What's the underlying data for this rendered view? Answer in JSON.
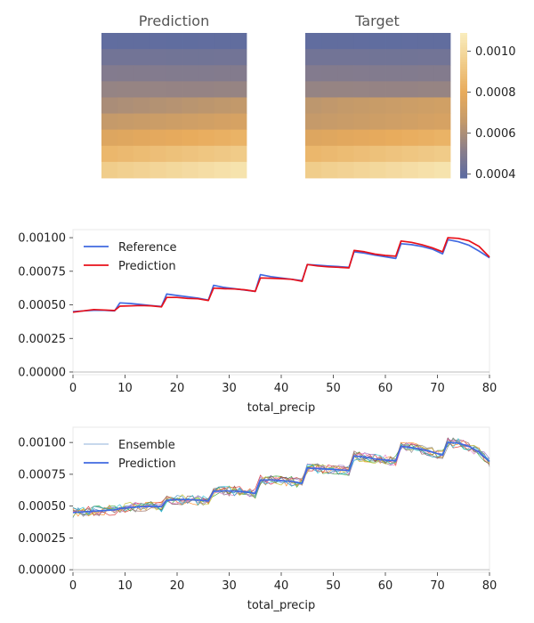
{
  "chart_data": [
    {
      "type": "heatmap",
      "title": "Prediction",
      "rows": 9,
      "cols": 9,
      "row_values": [
        0.0004,
        0.00045,
        0.0005,
        0.00055,
        0.00063,
        0.0007,
        0.0008,
        0.0009,
        0.001
      ],
      "gradient": "left-to-right slight increase on lower rows"
    },
    {
      "type": "heatmap",
      "title": "Target",
      "rows": 9,
      "cols": 9,
      "row_values": [
        0.0004,
        0.00045,
        0.0005,
        0.00055,
        0.00068,
        0.0007,
        0.0008,
        0.0009,
        0.001
      ]
    },
    {
      "type": "colorbar",
      "ticks": [
        "0.0010",
        "0.0008",
        "0.0006",
        "0.0004"
      ],
      "tick_values": [
        0.001,
        0.0008,
        0.0006,
        0.0004
      ],
      "range": [
        0.00038,
        0.00109
      ],
      "colors": [
        "#5a6aa2",
        "#8a7e8a",
        "#c49a6a",
        "#e8ab5c",
        "#f0cc8a",
        "#f9ecbc"
      ]
    },
    {
      "type": "line",
      "xlabel": "total_precip",
      "ylabel": "",
      "xlim": [
        0,
        80
      ],
      "ylim": [
        -2e-05,
        0.00106
      ],
      "xticks": [
        "0",
        "10",
        "20",
        "30",
        "40",
        "50",
        "60",
        "70",
        "80"
      ],
      "yticks": [
        "0.00000",
        "0.00025",
        "0.00050",
        "0.00075",
        "0.00100"
      ],
      "legend": "upper-left",
      "series": [
        {
          "name": "Reference",
          "color": "#4169e1",
          "x": [
            0,
            2,
            4,
            6,
            8,
            9,
            11,
            13,
            15,
            17,
            18,
            20,
            22,
            24,
            26,
            27,
            29,
            31,
            33,
            35,
            36,
            38,
            40,
            42,
            44,
            45,
            47,
            49,
            51,
            53,
            54,
            56,
            58,
            60,
            62,
            63,
            65,
            67,
            69,
            71,
            72,
            74,
            76,
            78,
            80
          ],
          "y": [
            0.00045,
            0.000455,
            0.00046,
            0.00046,
            0.000455,
            0.000515,
            0.00051,
            0.000503,
            0.000495,
            0.000488,
            0.00058,
            0.00057,
            0.00056,
            0.00055,
            0.000535,
            0.000645,
            0.00063,
            0.00062,
            0.00061,
            0.0006,
            0.000725,
            0.00071,
            0.0007,
            0.00069,
            0.00068,
            0.0008,
            0.000795,
            0.00079,
            0.000785,
            0.00078,
            0.000895,
            0.000885,
            0.00087,
            0.000858,
            0.000845,
            0.000955,
            0.000948,
            0.000935,
            0.000915,
            0.00088,
            0.000985,
            0.00097,
            0.000945,
            0.0009,
            0.00085
          ]
        },
        {
          "name": "Prediction",
          "color": "#e8111a",
          "x": [
            0,
            2,
            4,
            6,
            8,
            9,
            11,
            13,
            15,
            17,
            18,
            20,
            22,
            24,
            26,
            27,
            29,
            31,
            33,
            35,
            36,
            38,
            40,
            42,
            44,
            45,
            47,
            49,
            51,
            53,
            54,
            56,
            58,
            60,
            62,
            63,
            65,
            67,
            69,
            71,
            72,
            74,
            76,
            78,
            80
          ],
          "y": [
            0.000445,
            0.000455,
            0.000465,
            0.000462,
            0.000458,
            0.00049,
            0.000492,
            0.000495,
            0.000493,
            0.000485,
            0.000555,
            0.000555,
            0.000548,
            0.000545,
            0.000532,
            0.000625,
            0.00062,
            0.000618,
            0.000612,
            0.0006,
            0.0007,
            0.000698,
            0.000695,
            0.00069,
            0.000675,
            0.0008,
            0.00079,
            0.000783,
            0.00078,
            0.000775,
            0.000905,
            0.000895,
            0.000878,
            0.000868,
            0.000862,
            0.000975,
            0.000965,
            0.000948,
            0.000925,
            0.000895,
            0.001,
            0.000995,
            0.000978,
            0.000935,
            0.000855
          ]
        }
      ]
    },
    {
      "type": "line",
      "xlabel": "total_precip",
      "ylabel": "",
      "xlim": [
        0,
        80
      ],
      "ylim": [
        -2e-05,
        0.00112
      ],
      "xticks": [
        "0",
        "10",
        "20",
        "30",
        "40",
        "50",
        "60",
        "70",
        "80"
      ],
      "yticks": [
        "0.00000",
        "0.00025",
        "0.00050",
        "0.00075",
        "0.00100"
      ],
      "legend": "upper-left",
      "ensemble_members": 10,
      "ensemble_spread": 4e-05,
      "ensemble_colors": [
        "#1f77b4",
        "#ff7f0e",
        "#2ca02c",
        "#d62728",
        "#9467bd",
        "#8c564b",
        "#e377c2",
        "#7f7f7f",
        "#bcbd22",
        "#17becf"
      ],
      "series": [
        {
          "name": "Ensemble",
          "color": "#8fb0d8"
        },
        {
          "name": "Prediction",
          "color": "#4169e1",
          "x": [
            0,
            2,
            4,
            6,
            8,
            9,
            11,
            13,
            15,
            17,
            18,
            20,
            22,
            24,
            26,
            27,
            29,
            31,
            33,
            35,
            36,
            38,
            40,
            42,
            44,
            45,
            47,
            49,
            51,
            53,
            54,
            56,
            58,
            60,
            62,
            63,
            65,
            67,
            69,
            71,
            72,
            74,
            76,
            78,
            80
          ],
          "y": [
            0.00045,
            0.000455,
            0.00046,
            0.000465,
            0.00047,
            0.00048,
            0.00049,
            0.000495,
            0.000498,
            0.000495,
            0.000545,
            0.00055,
            0.000552,
            0.000548,
            0.00054,
            0.000615,
            0.00062,
            0.000618,
            0.000612,
            0.0006,
            0.000705,
            0.000705,
            0.0007,
            0.000695,
            0.00068,
            0.0008,
            0.000795,
            0.00079,
            0.000785,
            0.00078,
            0.000895,
            0.000885,
            0.00087,
            0.000862,
            0.000855,
            0.00097,
            0.00096,
            0.000945,
            0.000925,
            0.0009,
            0.001,
            0.000995,
            0.00097,
            0.000925,
            0.00085
          ]
        }
      ]
    }
  ]
}
